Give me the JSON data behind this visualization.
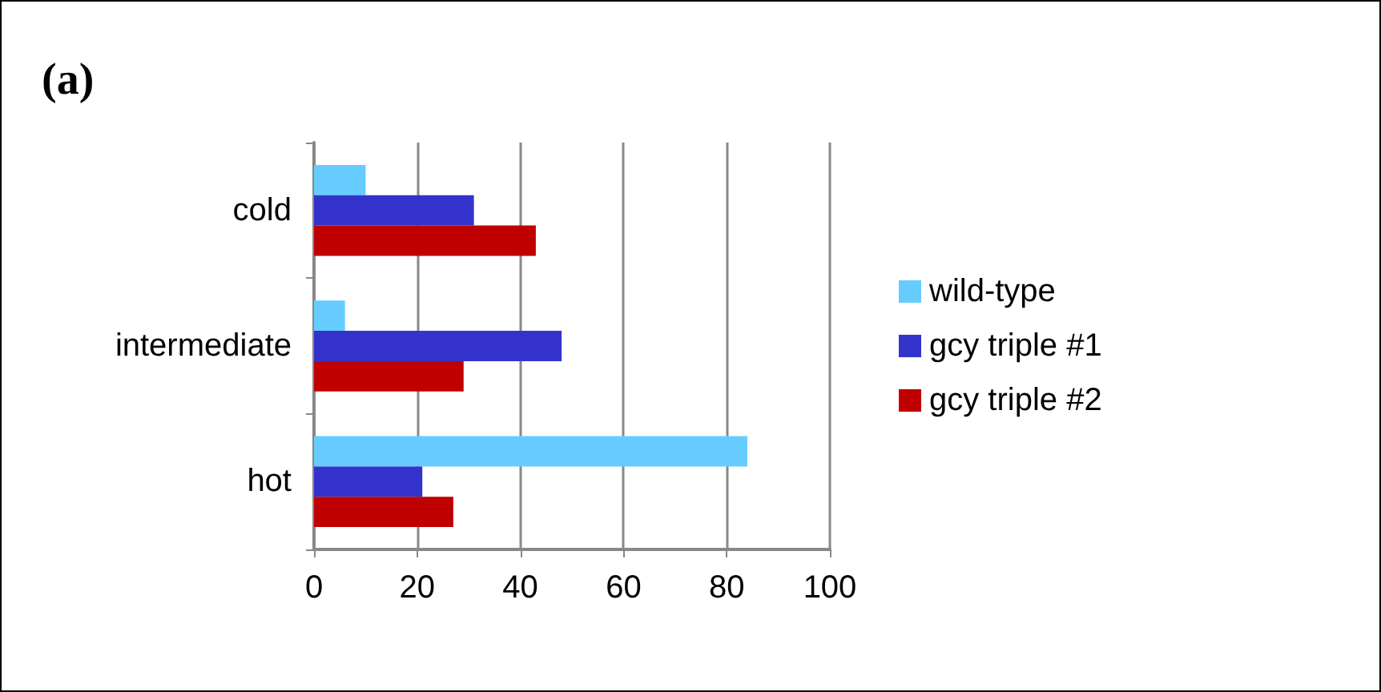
{
  "chart_data": {
    "type": "bar",
    "orientation": "horizontal",
    "title": "(a)",
    "categories": [
      "cold",
      "intermediate",
      "hot"
    ],
    "series": [
      {
        "name": "wild-type",
        "color": "#66ccff",
        "values": [
          10,
          6,
          84
        ]
      },
      {
        "name": "gcy triple #1",
        "color": "#3333cc",
        "values": [
          31,
          48,
          21
        ]
      },
      {
        "name": "gcy triple #2",
        "color": "#c00000",
        "values": [
          43,
          29,
          27
        ]
      }
    ],
    "xlim": [
      0,
      100
    ],
    "xticks": [
      0,
      20,
      40,
      60,
      80,
      100
    ],
    "grid": "x",
    "legend": "right"
  }
}
